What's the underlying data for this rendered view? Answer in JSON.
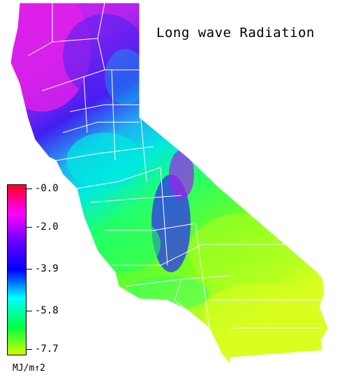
{
  "title": "Long wave Radiation",
  "legend": {
    "ticks": [
      "-0.0",
      "-2.0",
      "-3.9",
      "-5.8",
      "-7.7"
    ],
    "unit": "MJ/m↑2",
    "colors": [
      "#ff0022",
      "#ff00ff",
      "#6600ff",
      "#0000ff",
      "#00ffff",
      "#00ff44",
      "#ccff00"
    ]
  },
  "map": {
    "region": "California",
    "colors": {
      "north": "#e020e8",
      "northeast": "#4020f0",
      "central_valley": "#00e8e0",
      "sierra": "#3030f0",
      "coast": "#20ff60",
      "south": "#a0ff20",
      "desert": "#d8ff20",
      "boundary": "#ffffff"
    }
  }
}
